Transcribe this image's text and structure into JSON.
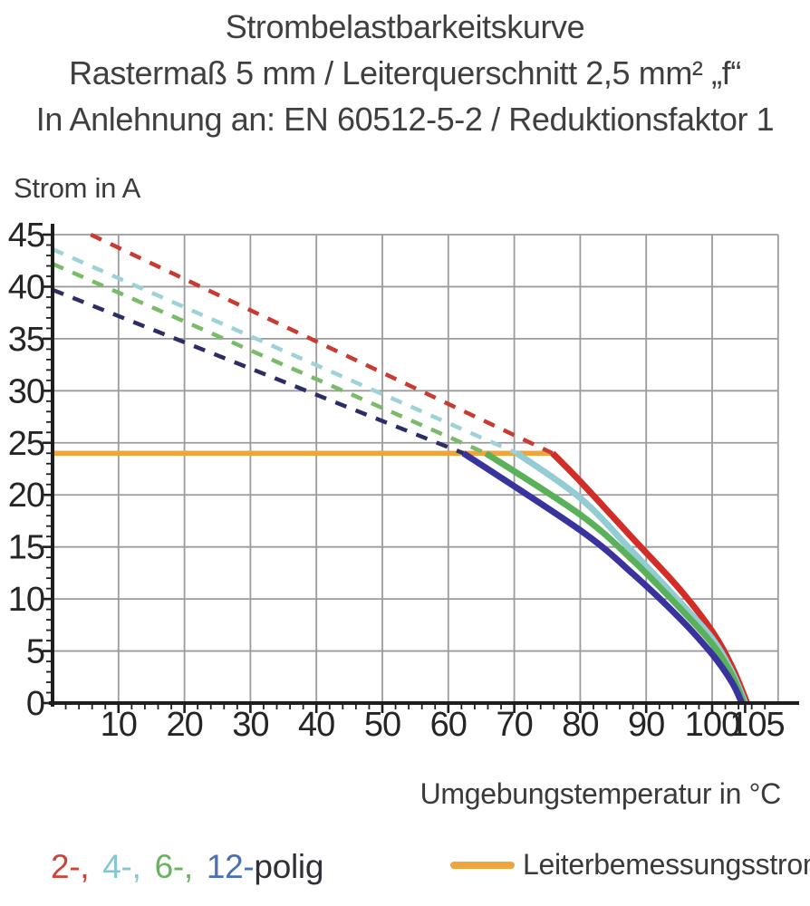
{
  "title": {
    "line1": "Strombelastbarkeitskurve",
    "line2": "Rastermaß 5 mm / Leiterquerschnitt 2,5 mm² „f“",
    "line3": "In Anlehnung an: EN 60512-5-2 / Reduktionsfaktor 1"
  },
  "axes": {
    "y_label": "Strom in A",
    "x_label": "Umgebungstemperatur in °C"
  },
  "legend": {
    "pole_items": [
      {
        "label": "2-,",
        "color": "#cf423c"
      },
      {
        "label": "4-,",
        "color": "#85c6cf"
      },
      {
        "label": "6-,",
        "color": "#68b360"
      },
      {
        "label": "12-",
        "color": "#4a70b8"
      }
    ],
    "suffix": "polig",
    "suffix_color": "#2f2f38",
    "rated_label": "Leiterbemessungsstrom",
    "rated_color": "#f0a43c"
  },
  "chart_data": {
    "type": "line",
    "title": "Strombelastbarkeitskurve",
    "xlabel": "Umgebungstemperatur in °C",
    "ylabel": "Strom in A",
    "xlim": [
      0,
      110
    ],
    "ylim": [
      0,
      45
    ],
    "x_ticks_major": [
      10,
      20,
      30,
      40,
      50,
      60,
      70,
      80,
      90,
      100,
      105
    ],
    "x_minor_step": 2,
    "y_ticks_major": [
      0,
      5,
      10,
      15,
      20,
      25,
      30,
      35,
      40,
      45
    ],
    "y_minor_step": 1,
    "grid": true,
    "grid_color": "#9b9b9b",
    "axis_color": "#1e1e1e",
    "tick_label_color": "#252525",
    "rated_line": {
      "label": "Leiterbemessungsstrom",
      "y": 24,
      "x_from": 0,
      "x_to": 75.8,
      "color": "#f0a43c"
    },
    "series": [
      {
        "name": "2-polig",
        "color": "#d22d26",
        "dash_color": "#c93a33",
        "dashed_segment": [
          [
            5.8,
            45
          ],
          [
            75.8,
            24
          ]
        ],
        "solid_points": [
          [
            75.8,
            24
          ],
          [
            80,
            21.3
          ],
          [
            88,
            15.8
          ],
          [
            95,
            11.0
          ],
          [
            100,
            6.9
          ],
          [
            103,
            3.5
          ],
          [
            105.3,
            0
          ]
        ]
      },
      {
        "name": "4-polig",
        "color": "#93ccd3",
        "dash_color": "#9fd2d8",
        "dashed_segment": [
          [
            0,
            43.6
          ],
          [
            70.4,
            24
          ]
        ],
        "solid_points": [
          [
            70.4,
            24
          ],
          [
            80,
            19.7
          ],
          [
            88,
            14.5
          ],
          [
            95,
            9.8
          ],
          [
            100,
            6.2
          ],
          [
            103,
            3.0
          ],
          [
            105.0,
            0
          ]
        ]
      },
      {
        "name": "6-polig",
        "color": "#5bb15a",
        "dash_color": "#79bb6a",
        "dashed_segment": [
          [
            0,
            42.2
          ],
          [
            65.7,
            24
          ]
        ],
        "solid_points": [
          [
            65.7,
            24
          ],
          [
            80,
            18.1
          ],
          [
            88,
            13.7
          ],
          [
            95,
            9.2
          ],
          [
            100,
            5.7
          ],
          [
            103,
            2.7
          ],
          [
            104.8,
            0
          ]
        ]
      },
      {
        "name": "12-polig",
        "color": "#38339d",
        "dash_color": "#2c2c66",
        "dashed_segment": [
          [
            0,
            39.7
          ],
          [
            62.3,
            24
          ]
        ],
        "solid_points": [
          [
            62.3,
            24
          ],
          [
            80,
            16.6
          ],
          [
            88,
            12.4
          ],
          [
            95,
            8.2
          ],
          [
            100,
            4.7
          ],
          [
            103,
            2.0
          ],
          [
            104.5,
            0
          ]
        ]
      }
    ]
  }
}
